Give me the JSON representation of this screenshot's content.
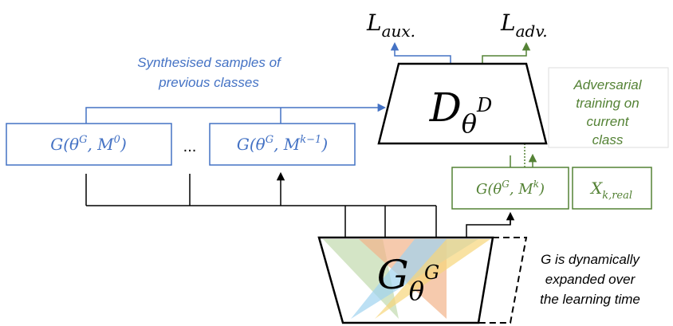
{
  "losses": {
    "aux": {
      "base": "L",
      "sub": "aux."
    },
    "adv": {
      "base": "L",
      "sub": "adv."
    }
  },
  "captions": {
    "synthesised": [
      "Synthesised samples of",
      "previous classes"
    ],
    "adversarial": [
      "Adversarial",
      "training on",
      "current",
      "class"
    ],
    "expansion": [
      "G is dynamically",
      "expanded over",
      "the learning time"
    ]
  },
  "generators": [
    {
      "pre": "G(θ",
      "sup1": "G",
      "mid": ", M",
      "sup2": "0",
      "post": ")"
    },
    {
      "pre": "G(θ",
      "sup1": "G",
      "mid": ", M",
      "sup2": "k−1",
      "post": ")"
    },
    {
      "pre": "G(θ",
      "sup1": "G",
      "mid": ", M",
      "sup2": "k",
      "post": ")"
    }
  ],
  "ellipsis": "...",
  "real": {
    "base": "X",
    "sub": "k,real"
  },
  "discriminator": {
    "base": "D",
    "sub": "θ",
    "sup": "D"
  },
  "generator": {
    "base": "G",
    "sub": "θ",
    "sup": "G"
  }
}
